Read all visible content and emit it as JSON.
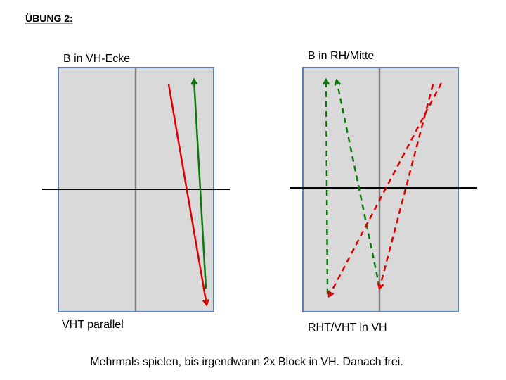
{
  "header": {
    "title": "ÜBUNG 2:"
  },
  "panels": [
    {
      "top_label": "B in VH-Ecke",
      "bottom_label": "VHT parallel"
    },
    {
      "top_label": "B in RH/Mitte",
      "bottom_label": "RHT/VHT in VH"
    }
  ],
  "footer": {
    "text": "Mehrmals spielen, bis irgendwann 2x Block in VH. Danach frei."
  }
}
